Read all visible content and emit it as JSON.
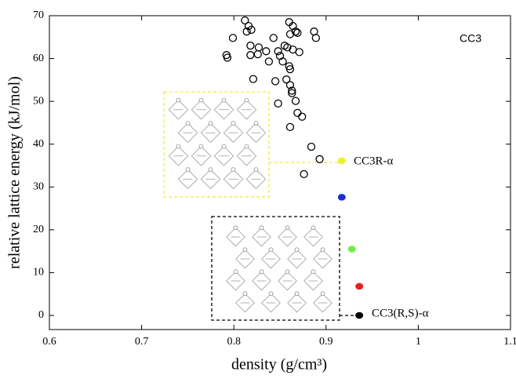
{
  "chart_data": {
    "type": "scatter",
    "xlabel": "density (g/cm³)",
    "ylabel": "relative lattice energy (kJ/mol)",
    "tag": "CC3",
    "annotations": [
      "CC3R-α",
      "CC3(R,S)-α"
    ],
    "xlim": [
      0.6,
      1.1
    ],
    "xticks": [
      0.6,
      0.7,
      0.8,
      0.9,
      1,
      1.1
    ],
    "ylim": [
      -3.3,
      70
    ],
    "yticks": [
      0,
      10,
      20,
      30,
      40,
      50,
      60,
      70
    ],
    "series": [
      {
        "marker": "open",
        "color": "#000000",
        "x": [
          0.812,
          0.816,
          0.814,
          0.819,
          0.799,
          0.792,
          0.793,
          0.818,
          0.827,
          0.835,
          0.826,
          0.843,
          0.848,
          0.85,
          0.855,
          0.838,
          0.818,
          0.86,
          0.864,
          0.867,
          0.861,
          0.869,
          0.858,
          0.864,
          0.871,
          0.853,
          0.86,
          0.861,
          0.887,
          0.889,
          0.821,
          0.845,
          0.857,
          0.861,
          0.863,
          0.848,
          0.867,
          0.869,
          0.874,
          0.861,
          0.884,
          0.893,
          0.876,
          0.863
        ],
        "values": [
          68.9,
          67.6,
          66.3,
          66.7,
          64.8,
          60.8,
          60.2,
          63.0,
          62.6,
          61.7,
          61.0,
          64.8,
          61.7,
          60.6,
          63.0,
          59.3,
          60.8,
          68.5,
          67.6,
          66.3,
          65.7,
          66.0,
          62.6,
          62.1,
          61.5,
          59.3,
          58.2,
          57.5,
          66.3,
          64.8,
          55.2,
          54.7,
          55.1,
          53.8,
          52.5,
          49.5,
          50.1,
          47.3,
          46.4,
          44.0,
          39.4,
          36.5,
          33.0,
          51.9
        ]
      },
      {
        "marker": "filled",
        "colors": [
          "#f0ee2a",
          "#1a2fd6",
          "#6ef04a",
          "#e0241c",
          "#000000"
        ],
        "x": [
          0.917,
          0.917,
          0.928,
          0.936,
          0.936
        ],
        "values": [
          36.1,
          27.6,
          15.5,
          6.8,
          0.0
        ]
      }
    ]
  }
}
